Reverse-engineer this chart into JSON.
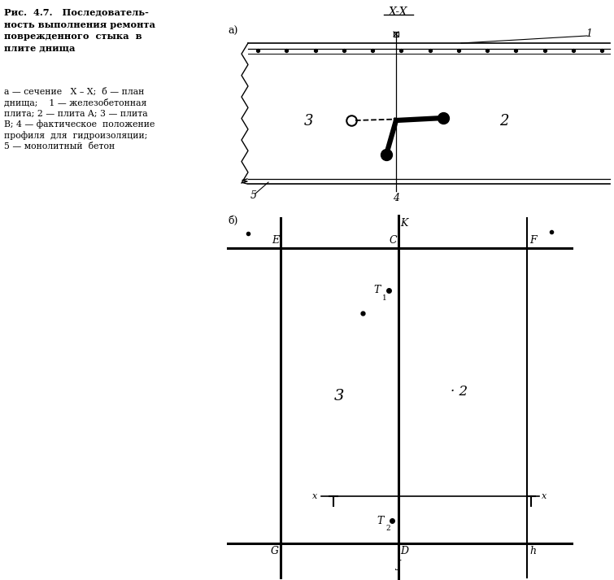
{
  "bg_color": "#ffffff",
  "line_color": "#000000",
  "title": "X-X",
  "caption_title": "Рис.  4.7.   Последователь-\nность выполнения ремонта\nповрежденного  стыка  в\nплите днища",
  "caption_body": "а — сечение   X – X;  б — план\nднища;    1 — железобетонная\nплита; 2 — плита A; 3 — плита\nB; 4 — фактическое  положение\nпрофиля  для  гидроизоляции;\n5 — монолитный  бетон"
}
